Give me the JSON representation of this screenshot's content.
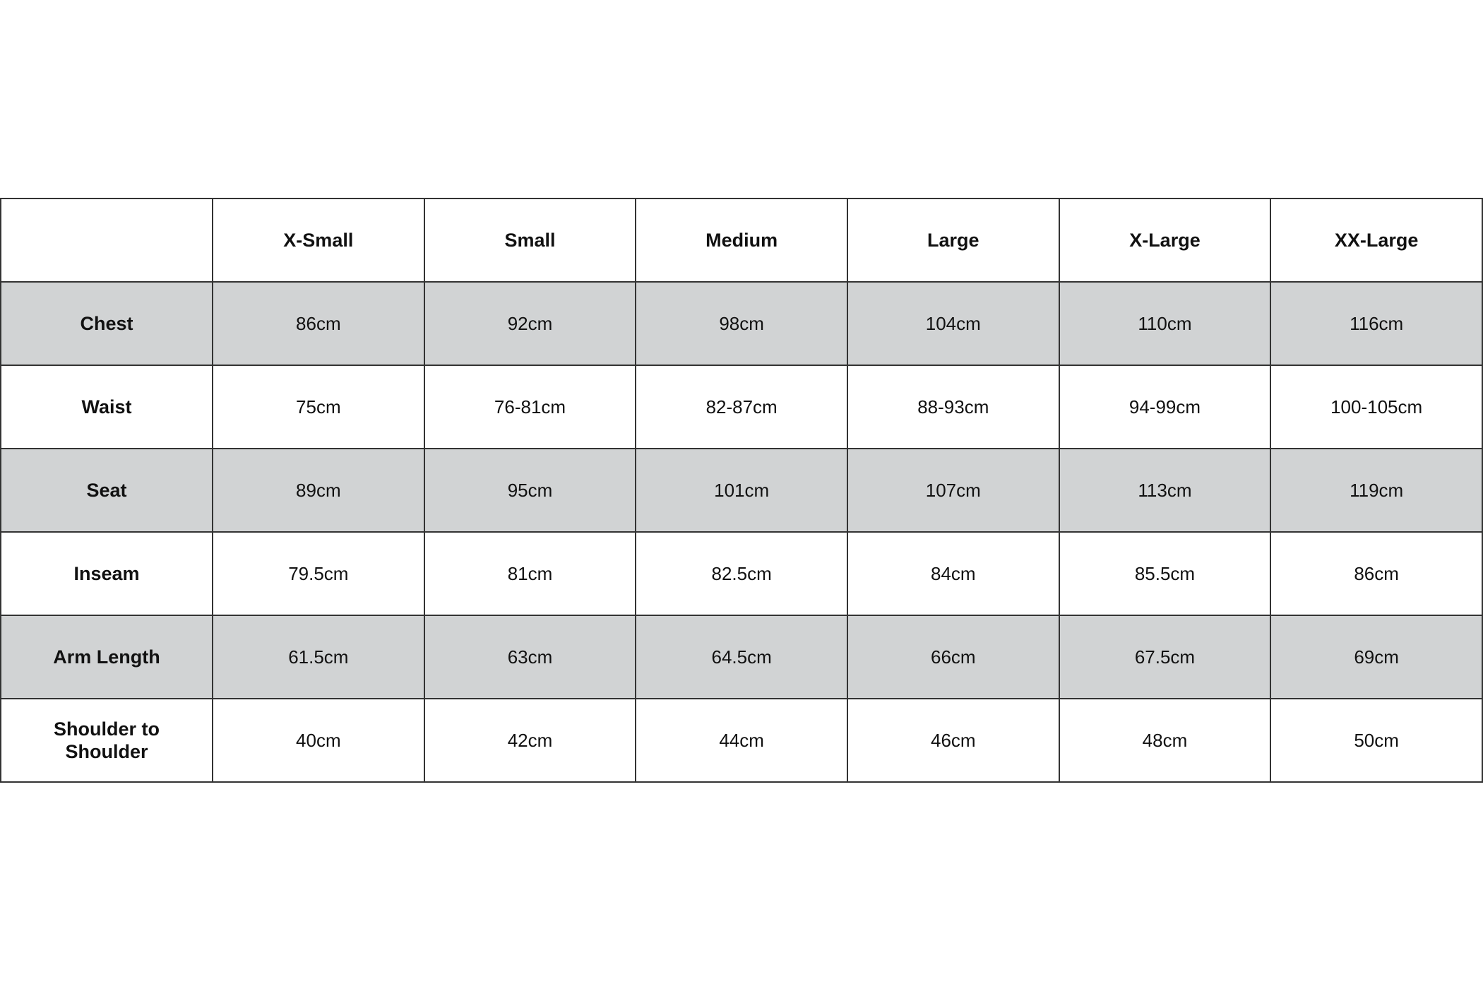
{
  "table": {
    "columns": [
      "X-Small",
      "Small",
      "Medium",
      "Large",
      "X-Large",
      "XX-Large"
    ],
    "rows": [
      {
        "label": "Chest",
        "values": [
          "86cm",
          "92cm",
          "98cm",
          "104cm",
          "110cm",
          "116cm"
        ]
      },
      {
        "label": "Waist",
        "values": [
          "75cm",
          "76-81cm",
          "82-87cm",
          "88-93cm",
          "94-99cm",
          "100-105cm"
        ]
      },
      {
        "label": "Seat",
        "values": [
          "89cm",
          "95cm",
          "101cm",
          "107cm",
          "113cm",
          "119cm"
        ]
      },
      {
        "label": "Inseam",
        "values": [
          "79.5cm",
          "81cm",
          "82.5cm",
          "84cm",
          "85.5cm",
          "86cm"
        ]
      },
      {
        "label": "Arm Length",
        "values": [
          "61.5cm",
          "63cm",
          "64.5cm",
          "66cm",
          "67.5cm",
          "69cm"
        ]
      },
      {
        "label": "Shoulder to Shoulder",
        "values": [
          "40cm",
          "42cm",
          "44cm",
          "46cm",
          "48cm",
          "50cm"
        ]
      }
    ]
  }
}
